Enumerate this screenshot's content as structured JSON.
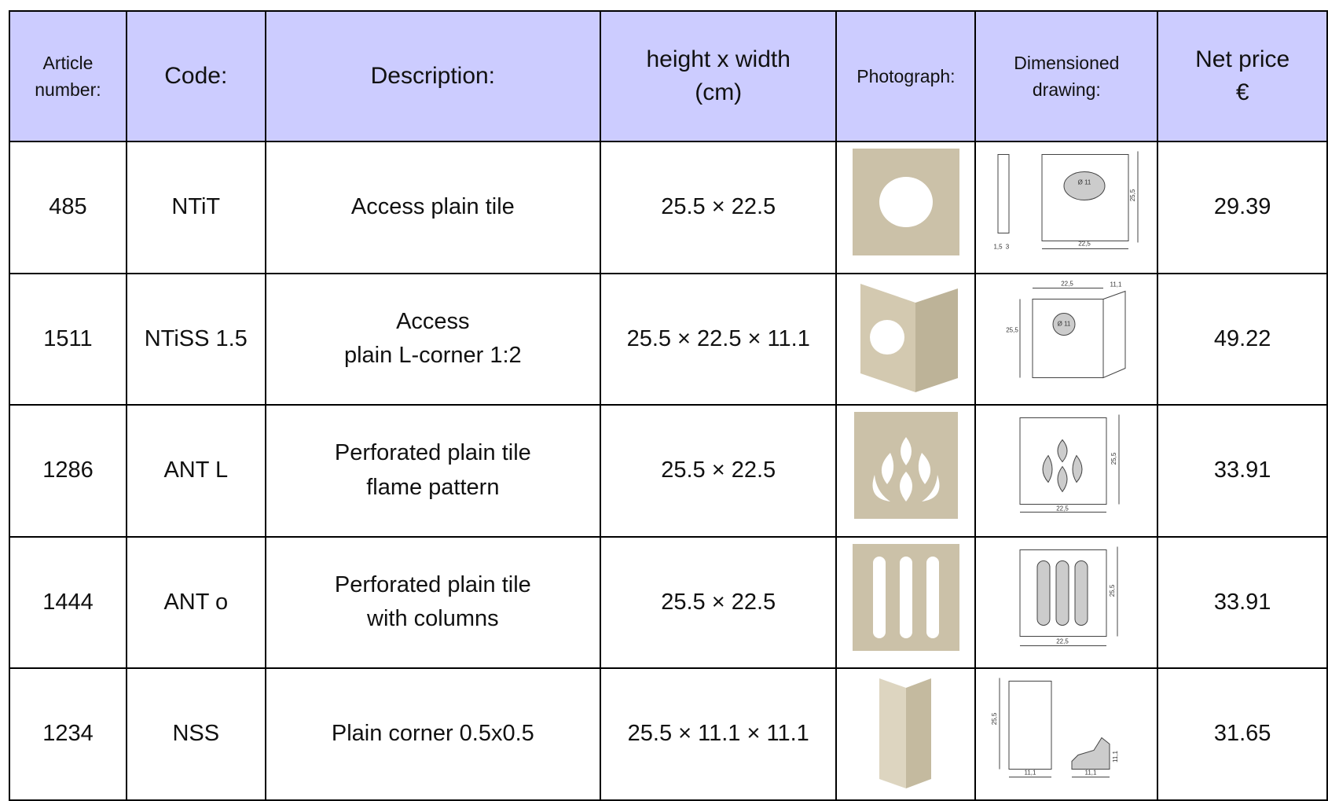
{
  "table": {
    "header": [
      "Article number:",
      "Code:",
      "Description:",
      "height x width\n(cm)",
      "Photograph:",
      "Dimensioned\ndrawing:",
      "Net price\n€"
    ],
    "rows": [
      {
        "article": "485",
        "code": "NTiT",
        "description": "Access plain tile",
        "size": "25.5 × 22.5",
        "price": "29.39",
        "drawing_labels": [
          "Ø 11",
          "25,5",
          "22,5",
          "1,5",
          "3"
        ]
      },
      {
        "article": "1511",
        "code": "NTiSS 1.5",
        "description": "Access\nplain L-corner 1:2",
        "size": "25.5 × 22.5 × 11.1",
        "price": "49.22",
        "drawing_labels": [
          "22,5",
          "11,1",
          "25,5",
          "Ø 11"
        ]
      },
      {
        "article": "1286",
        "code": "ANT L",
        "description": "Perforated plain tile\nflame pattern",
        "size": "25.5 × 22.5",
        "price": "33.91",
        "drawing_labels": [
          "25,5",
          "22,5"
        ]
      },
      {
        "article": "1444",
        "code": "ANT o",
        "description": "Perforated plain tile\nwith columns",
        "size": "25.5 × 22.5",
        "price": "33.91",
        "drawing_labels": [
          "25,5",
          "22,5"
        ]
      },
      {
        "article": "1234",
        "code": "NSS",
        "description": "Plain corner 0.5x0.5",
        "size": "25.5 × 11.1 × 11.1",
        "price": "31.65",
        "drawing_labels": [
          "25,5",
          "11,1",
          "11,1",
          "11,1"
        ]
      }
    ]
  }
}
